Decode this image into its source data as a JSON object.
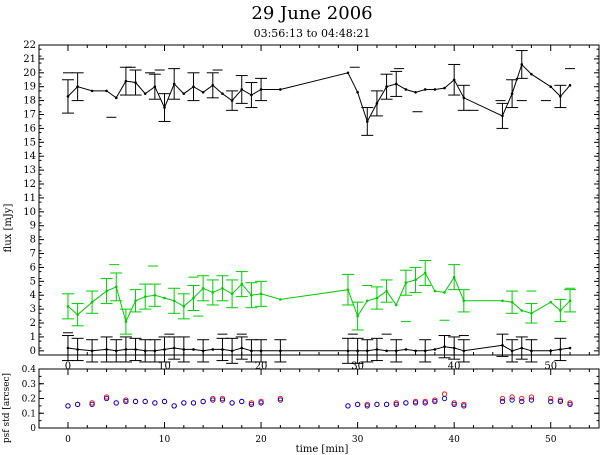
{
  "chart_data": [
    {
      "type": "line",
      "title": "29 June 2006",
      "subtitle": "03:56:13 to 04:48:21",
      "xlabel": "",
      "ylabel": "flux [mJy]",
      "xlim": [
        -3,
        55
      ],
      "ylim": [
        -0.3,
        22
      ],
      "xticks": [
        0,
        10,
        20,
        30,
        40,
        50
      ],
      "yticks": [
        0,
        1,
        2,
        3,
        4,
        5,
        6,
        7,
        8,
        9,
        10,
        11,
        12,
        13,
        14,
        15,
        16,
        17,
        18,
        19,
        20,
        21,
        22
      ],
      "grid": false,
      "series": [
        {
          "color": "#000000",
          "x": [
            0,
            1,
            2.5,
            4,
            5,
            6,
            7,
            8,
            9,
            10,
            11,
            12,
            13,
            14,
            15,
            16,
            17,
            18,
            19,
            20,
            22,
            29,
            30,
            31,
            32,
            33,
            34,
            35,
            36,
            37,
            38,
            39,
            40,
            41,
            45,
            46,
            47,
            48,
            50,
            51,
            52
          ],
          "y": [
            18.3,
            19.0,
            18.7,
            18.7,
            18.2,
            19.4,
            19.3,
            18.5,
            19.0,
            17.5,
            19.2,
            18.5,
            19.0,
            18.6,
            19.1,
            18.5,
            18.0,
            18.8,
            18.4,
            18.8,
            18.8,
            20.0,
            18.6,
            16.5,
            17.8,
            19.0,
            19.2,
            18.8,
            18.6,
            18.8,
            18.8,
            18.9,
            19.5,
            18.2,
            16.9,
            18.5,
            20.6,
            19.9,
            19.0,
            18.3,
            19.1
          ],
          "err": [
            1.2,
            1.0,
            0,
            0,
            0,
            1.0,
            0.9,
            0,
            0.9,
            1.0,
            1.1,
            0,
            1.0,
            0,
            0.9,
            0,
            0.7,
            1.0,
            0.9,
            0.8,
            0,
            0,
            0,
            1.0,
            0.9,
            0.9,
            0.9,
            0,
            0,
            0,
            0,
            0,
            1.1,
            0.9,
            0.9,
            1.0,
            1.0,
            0,
            0,
            0.8,
            0
          ],
          "dash": [
            {
              "x": 0,
              "y": 20.0
            },
            {
              "x": 4.5,
              "y": 16.8
            },
            {
              "x": 6.5,
              "y": 20.4
            },
            {
              "x": 8.5,
              "y": 20.0
            },
            {
              "x": 9.5,
              "y": 20.2
            },
            {
              "x": 15.5,
              "y": 20.2
            },
            {
              "x": 29.7,
              "y": 20.4
            },
            {
              "x": 34.3,
              "y": 20.3
            },
            {
              "x": 36.2,
              "y": 17.2
            },
            {
              "x": 42.0,
              "y": 17.3
            },
            {
              "x": 44.8,
              "y": 18.0
            },
            {
              "x": 47.0,
              "y": 18.0
            },
            {
              "x": 49.5,
              "y": 18.0
            },
            {
              "x": 52.0,
              "y": 20.3
            }
          ]
        },
        {
          "color": "#00cc00",
          "x": [
            0,
            1,
            2.5,
            4,
            5,
            6,
            7,
            8,
            9,
            10,
            11,
            12,
            13,
            14,
            15,
            16,
            17,
            18,
            19,
            20,
            22,
            29,
            30,
            31,
            32,
            33,
            34,
            35,
            36,
            37,
            38,
            39,
            40,
            41,
            45,
            46,
            47,
            48,
            50,
            51,
            52
          ],
          "y": [
            3.2,
            2.6,
            3.5,
            4.3,
            4.6,
            2.1,
            3.6,
            3.9,
            4.0,
            3.8,
            3.6,
            3.2,
            3.8,
            4.5,
            4.2,
            4.5,
            4.1,
            4.8,
            4.0,
            4.1,
            3.7,
            4.4,
            2.5,
            3.6,
            3.8,
            4.3,
            3.3,
            4.9,
            5.1,
            5.6,
            4.3,
            4.2,
            5.3,
            3.6,
            3.6,
            3.5,
            2.9,
            2.7,
            3.5,
            2.9,
            3.6
          ],
          "err": [
            0.9,
            0.8,
            0.8,
            0.9,
            1.0,
            0.9,
            0.8,
            0.9,
            0.8,
            0,
            0.9,
            0.9,
            0.9,
            0.9,
            0.9,
            0.9,
            1.0,
            0.9,
            0.9,
            0.9,
            0,
            1.1,
            1.0,
            0,
            0.8,
            0.8,
            0,
            0.9,
            0.9,
            0.9,
            0,
            0,
            0.9,
            0.8,
            0,
            0.8,
            0,
            0.7,
            0,
            0.8,
            0.8
          ],
          "dash": [
            {
              "x": 4.8,
              "y": 6.2
            },
            {
              "x": 8.8,
              "y": 6.1
            },
            {
              "x": 13.0,
              "y": 5.3
            },
            {
              "x": 13.5,
              "y": 2.5
            },
            {
              "x": 31.0,
              "y": 4.7
            },
            {
              "x": 35.0,
              "y": 2.1
            },
            {
              "x": 39.0,
              "y": 2.2
            },
            {
              "x": 48.0,
              "y": 4.3
            },
            {
              "x": 52.0,
              "y": 4.5
            }
          ]
        },
        {
          "color": "#000000",
          "x": [
            0,
            1,
            2.5,
            4,
            5,
            6,
            7,
            8,
            9,
            10,
            11,
            12,
            13,
            14,
            15,
            16,
            17,
            18,
            19,
            20,
            22,
            29,
            30,
            31,
            32,
            33,
            34,
            35,
            36,
            37,
            38,
            39,
            40,
            41,
            45,
            46,
            47,
            48,
            50,
            51,
            52
          ],
          "y": [
            0.2,
            0.1,
            0,
            0.1,
            0,
            0.1,
            0.1,
            0,
            0,
            0.1,
            0.2,
            0.1,
            0.1,
            0,
            0.1,
            0.1,
            0,
            0.2,
            0,
            0,
            0,
            0,
            0,
            0,
            0.1,
            0,
            0,
            0.1,
            0,
            0,
            0.1,
            0.3,
            0.2,
            0,
            0.4,
            0,
            0.2,
            0,
            0,
            0.1,
            0.2
          ],
          "err": [
            0.9,
            0.8,
            0.8,
            0.9,
            0.8,
            0.9,
            0.8,
            0.8,
            0.8,
            0.9,
            0.8,
            0.9,
            0,
            0.8,
            0,
            0.8,
            0.9,
            0.8,
            0.8,
            0.8,
            0.8,
            0.9,
            0.9,
            0.8,
            0.8,
            0,
            0.8,
            0,
            0,
            0.8,
            0,
            0.8,
            0.8,
            0.8,
            0.8,
            0.8,
            0.8,
            0.8,
            0,
            0.8,
            0
          ],
          "dash": [
            {
              "x": 0.0,
              "y": 1.3
            },
            {
              "x": 10.5,
              "y": 1.2
            },
            {
              "x": 16.0,
              "y": 1.2
            },
            {
              "x": 18.0,
              "y": 1.2
            },
            {
              "x": 29.5,
              "y": 1.2
            },
            {
              "x": 33.0,
              "y": 1.2
            },
            {
              "x": 41.0,
              "y": 1.1
            }
          ]
        }
      ]
    },
    {
      "type": "scatter",
      "title": "",
      "xlabel": "time [min]",
      "ylabel": "psf std [arcsec]",
      "xlim": [
        -3,
        55
      ],
      "ylim": [
        0,
        0.4
      ],
      "xticks": [
        0,
        10,
        20,
        30,
        40,
        50
      ],
      "yticks": [
        0,
        0.1,
        0.2,
        0.3,
        0.4
      ],
      "ytick_labels": [
        "0",
        "0.1",
        "0.2",
        "0.3",
        "0.4"
      ],
      "grid": false,
      "series": [
        {
          "marker": "circle",
          "color": "#ff0000",
          "x": [
            0,
            1,
            2.5,
            4,
            5,
            6,
            7,
            8,
            9,
            10,
            11,
            12,
            13,
            14,
            15,
            16,
            17,
            18,
            19,
            20,
            22,
            29,
            30,
            31,
            32,
            33,
            34,
            35,
            36,
            37,
            38,
            39,
            40,
            41,
            45,
            46,
            47,
            48,
            50,
            51,
            52
          ],
          "y": [
            0.15,
            0.16,
            0.17,
            0.21,
            0.17,
            0.19,
            0.18,
            0.18,
            0.17,
            0.18,
            0.15,
            0.17,
            0.17,
            0.18,
            0.2,
            0.2,
            0.17,
            0.18,
            0.17,
            0.18,
            0.2,
            0.15,
            0.16,
            0.16,
            0.16,
            0.16,
            0.17,
            0.17,
            0.18,
            0.18,
            0.19,
            0.23,
            0.17,
            0.16,
            0.2,
            0.21,
            0.2,
            0.21,
            0.2,
            0.19,
            0.17
          ]
        },
        {
          "marker": "circle",
          "color": "#0000cc",
          "x": [
            0,
            1,
            2.5,
            4,
            5,
            6,
            7,
            8,
            9,
            10,
            11,
            12,
            13,
            14,
            15,
            16,
            17,
            18,
            19,
            20,
            22,
            29,
            30,
            31,
            32,
            33,
            34,
            35,
            36,
            37,
            38,
            39,
            40,
            41,
            45,
            46,
            47,
            48,
            50,
            51,
            52
          ],
          "y": [
            0.15,
            0.16,
            0.16,
            0.2,
            0.17,
            0.18,
            0.18,
            0.18,
            0.17,
            0.18,
            0.15,
            0.17,
            0.17,
            0.18,
            0.19,
            0.19,
            0.17,
            0.18,
            0.16,
            0.17,
            0.19,
            0.15,
            0.16,
            0.15,
            0.16,
            0.16,
            0.16,
            0.17,
            0.17,
            0.17,
            0.18,
            0.2,
            0.16,
            0.15,
            0.18,
            0.19,
            0.18,
            0.19,
            0.18,
            0.18,
            0.16
          ]
        }
      ]
    }
  ]
}
